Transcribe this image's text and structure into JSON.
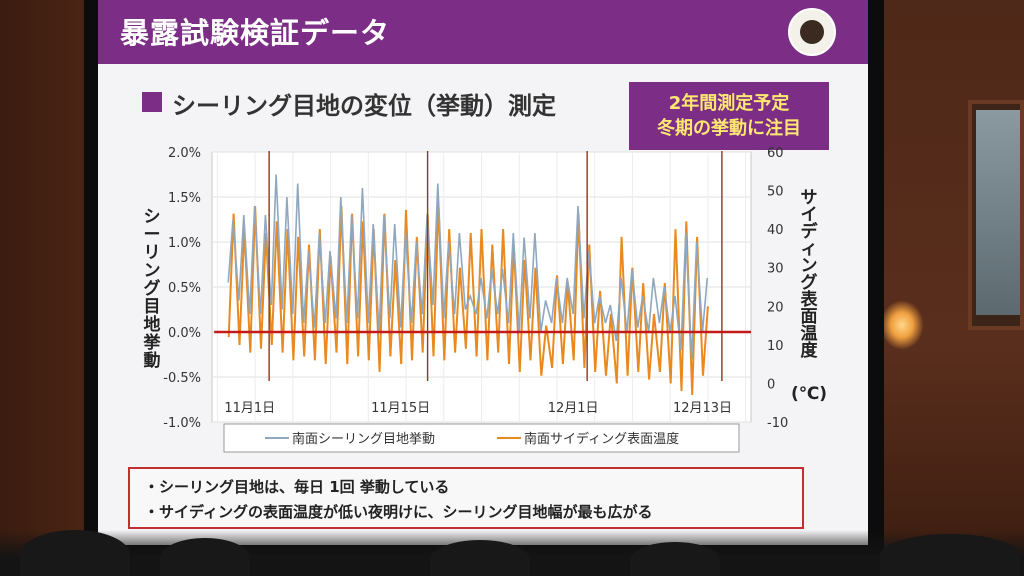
{
  "slide": {
    "header_title": "暴露試験検証データ",
    "section_title": "シーリング目地の変位（挙動）測定",
    "note_lines": [
      "2年間測定予定",
      "冬期の挙動に注目"
    ],
    "bullets": [
      "・シーリング目地は、毎日 1回 挙動している",
      "・サイディングの表面温度が低い夜明けに、シーリング目地幅が最も広がる"
    ],
    "accent_color": "#7c2e86",
    "box_border_color": "#c03030"
  },
  "chart_data": {
    "type": "line",
    "ylabel_left": "シーリング目地挙動",
    "ylabel_right": "サイディング表面温度",
    "ylabel_right_unit": "(℃)",
    "y_left_ticks": [
      "2.0%",
      "1.5%",
      "1.0%",
      "0.5%",
      "0.0%",
      "-0.5%",
      "-1.0%"
    ],
    "y_left_range": [
      -1.0,
      2.0
    ],
    "y_right_ticks": [
      "60",
      "50",
      "40",
      "30",
      "20",
      "10",
      "0",
      "-10"
    ],
    "y_right_range": [
      -10,
      60
    ],
    "x_ticks": [
      {
        "label": "11月1日",
        "day": 1
      },
      {
        "label": "11月15日",
        "day": 15
      },
      {
        "label": "12月1日",
        "day": 31
      },
      {
        "label": "12月13日",
        "day": 43
      }
    ],
    "x_range_days": [
      -2.5,
      47.5
    ],
    "reference_line_pct": 0.0,
    "series": [
      {
        "name": "南面シーリング目地挙動",
        "color": "#8fa8c0",
        "axis": "left",
        "daily_peaks_pct": [
          1.25,
          1.3,
          1.4,
          1.3,
          1.75,
          1.5,
          1.65,
          0.9,
          1.1,
          0.9,
          1.5,
          1.3,
          1.6,
          1.2,
          1.3,
          1.2,
          1.1,
          1.0,
          1.3,
          1.65,
          1.0,
          1.1,
          0.4,
          0.6,
          0.7,
          0.7,
          1.1,
          1.05,
          1.1,
          0.35,
          0.6,
          0.6,
          1.4,
          0.9,
          0.4,
          0.3,
          0.6,
          0.7,
          0.4,
          0.6,
          0.5,
          0.4,
          1.1,
          1.0,
          0.6
        ],
        "daily_lows_pct": [
          0.55,
          0.35,
          0.2,
          0.2,
          0.3,
          0.25,
          0.2,
          0.1,
          0.05,
          0.1,
          0.15,
          0.1,
          0.15,
          0.1,
          0.0,
          0.15,
          0.05,
          0.1,
          0.2,
          0.3,
          0.15,
          0.2,
          0.25,
          0.2,
          0.15,
          0.2,
          0.1,
          0.0,
          0.15,
          0.0,
          0.1,
          0.1,
          0.2,
          0.15,
          0.1,
          0.1,
          -0.1,
          0.0,
          0.05,
          0.0,
          0.1,
          0.0,
          -0.2,
          -0.3,
          0.0
        ]
      },
      {
        "name": "南面サイディング表面温度",
        "color": "#e88a20",
        "axis": "right",
        "daily_highs_c": [
          44,
          40,
          46,
          39,
          42,
          40,
          38,
          36,
          40,
          33,
          46,
          44,
          42,
          40,
          44,
          32,
          45,
          38,
          44,
          47,
          40,
          30,
          39,
          40,
          36,
          40,
          36,
          32,
          30,
          15,
          28,
          26,
          44,
          36,
          24,
          18,
          38,
          30,
          26,
          18,
          26,
          40,
          42,
          38,
          20
        ],
        "daily_lows_c": [
          12,
          10,
          8,
          9,
          10,
          8,
          6,
          7,
          6,
          5,
          8,
          5,
          7,
          6,
          3,
          7,
          5,
          6,
          8,
          7,
          6,
          8,
          9,
          7,
          6,
          8,
          5,
          3,
          6,
          2,
          4,
          5,
          6,
          4,
          3,
          2,
          0,
          2,
          3,
          1,
          3,
          0,
          -2,
          -3,
          2
        ]
      }
    ],
    "spikes_days": [
      2.8,
      17.5,
      32.3,
      44.8
    ],
    "grid": true,
    "legend_position": "bottom"
  }
}
